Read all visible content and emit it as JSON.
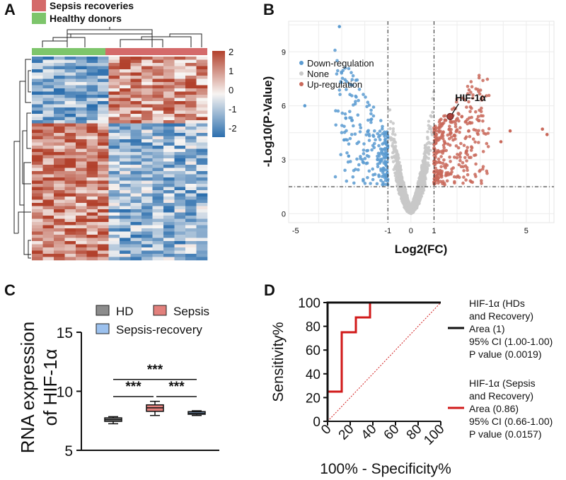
{
  "panels": {
    "a": "A",
    "b": "B",
    "c": "C",
    "d": "D"
  },
  "colors": {
    "sepsis_recovery": "#d46a6a",
    "healthy": "#7dc56b",
    "heat_high": "#b2412c",
    "heat_mid": "#f7f4f2",
    "heat_low": "#2c6fae",
    "down": "#5b9bd1",
    "none": "#c8c8c8",
    "up": "#c9685a",
    "hd_box": "#8c8c8c",
    "sepsis_box": "#e2807c",
    "recovery_box": "#9cc1ee",
    "roc_black": "#111111",
    "roc_red": "#d11a1a"
  },
  "chart_data": [
    {
      "type": "heatmap",
      "panel": "A",
      "legend": [
        {
          "label": "Sepsis recoveries",
          "color": "#d46a6a"
        },
        {
          "label": "Healthy donors",
          "color": "#7dc56b"
        }
      ],
      "group_sizes": {
        "healthy": 7,
        "sepsis_recovery": 9
      },
      "rows": 64,
      "colorbar": {
        "ticks": [
          "2",
          "1",
          "0",
          "-1",
          "-2"
        ],
        "range": [
          -2,
          2
        ]
      }
    },
    {
      "type": "scatter",
      "panel": "B",
      "title": "",
      "xlabel": "Log2(FC)",
      "ylabel": "-Log10(P-Value)",
      "xlim": [
        -5.3,
        6.2
      ],
      "ylim": [
        -0.5,
        10.7
      ],
      "x_ticks": [
        "-5",
        "-1",
        "0",
        "1",
        "5"
      ],
      "x_tick_values": [
        -5,
        -1,
        0,
        1,
        5
      ],
      "y_ticks": [
        "0",
        "3",
        "6",
        "9"
      ],
      "y_tick_values": [
        0,
        3,
        6,
        9
      ],
      "thresholds": {
        "fc": [
          -1,
          1
        ],
        "p": 1.5
      },
      "legend": [
        "Down-regulation",
        "None",
        "Up-regulation"
      ],
      "annotation": {
        "label": "HIF-1α",
        "x": 1.7,
        "y": 5.4
      }
    },
    {
      "type": "box",
      "panel": "C",
      "ylabel_line1": "RNA expression",
      "ylabel_line2": "of HIF-1α",
      "ylim": [
        5,
        15
      ],
      "y_ticks": [
        "5",
        "10",
        "15"
      ],
      "y_tick_values": [
        5,
        10,
        15
      ],
      "legend": [
        "HD",
        "Sepsis",
        "Sepsis-recovery"
      ],
      "groups": [
        {
          "name": "HD",
          "min": 7.25,
          "q1": 7.45,
          "median": 7.6,
          "q3": 7.75,
          "max": 7.85
        },
        {
          "name": "Sepsis",
          "min": 7.95,
          "q1": 8.3,
          "median": 8.6,
          "q3": 8.85,
          "max": 9.15
        },
        {
          "name": "Sepsis-recovery",
          "min": 7.95,
          "q1": 8.05,
          "median": 8.15,
          "q3": 8.28,
          "max": 8.35
        }
      ],
      "significance": [
        {
          "from": 0,
          "to": 2,
          "label": "***",
          "y": 11.0
        },
        {
          "from": 0,
          "to": 1,
          "label": "***",
          "y": 9.55
        },
        {
          "from": 1,
          "to": 2,
          "label": "***",
          "y": 9.55
        }
      ]
    },
    {
      "type": "line",
      "panel": "D",
      "xlabel": "100% - Specificity%",
      "ylabel": "Sensitivity%",
      "xlim": [
        0,
        100
      ],
      "ylim": [
        0,
        100
      ],
      "x_ticks": [
        "0",
        "20",
        "40",
        "60",
        "80",
        "100"
      ],
      "y_ticks": [
        "0",
        "20",
        "40",
        "60",
        "80",
        "100"
      ],
      "series": [
        {
          "name": "HIF-1α (HDs and Recovery)",
          "color": "#111111",
          "x": [
            0,
            0,
            100
          ],
          "y": [
            0,
            100,
            100
          ],
          "legend_lines": [
            "HIF-1α (HDs",
            "and Recovery)",
            "Area (1)",
            "95% CI (1.00-1.00)",
            "P value (0.0019)"
          ]
        },
        {
          "name": "HIF-1α (Sepsis and Recovery)",
          "color": "#d11a1a",
          "x": [
            0,
            0,
            12.5,
            12.5,
            25,
            25,
            37.5,
            37.5,
            100
          ],
          "y": [
            0,
            25,
            25,
            75,
            75,
            87.5,
            87.5,
            100,
            100
          ],
          "legend_lines": [
            "HIF-1α (Sepsis",
            "and Recovery)",
            "Area (0.86)",
            "95% CI (0.66-1.00)",
            "P value (0.0157)"
          ]
        }
      ]
    }
  ]
}
